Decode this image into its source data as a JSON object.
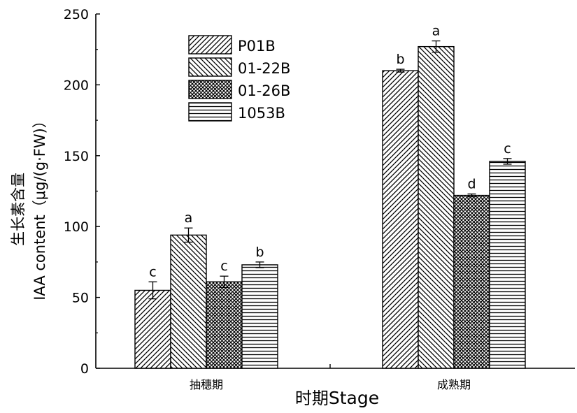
{
  "chart_data": {
    "type": "bar",
    "categories": [
      "抽穗期",
      "成熟期"
    ],
    "series": [
      {
        "name": "P01B",
        "pattern": "hatch-fwd",
        "values": [
          55,
          210
        ],
        "errors": [
          6,
          1
        ],
        "sig": [
          "c",
          "b"
        ]
      },
      {
        "name": "01-22B",
        "pattern": "hatch-back",
        "values": [
          94,
          227
        ],
        "errors": [
          5,
          4
        ],
        "sig": [
          "a",
          "a"
        ]
      },
      {
        "name": "01-26B",
        "pattern": "crosshatch",
        "values": [
          61,
          122
        ],
        "errors": [
          4,
          1
        ],
        "sig": [
          "c",
          "d"
        ]
      },
      {
        "name": "1053B",
        "pattern": "horizontal",
        "values": [
          73,
          146
        ],
        "errors": [
          2,
          2
        ],
        "sig": [
          "b",
          "c"
        ]
      }
    ],
    "y_title_lines": [
      "生长素含量",
      "IAA content（μg/(g·FW)）"
    ],
    "x_title_cn": "时期",
    "x_title_en": "Stage",
    "ylim": [
      0,
      250
    ],
    "yticks": [
      0,
      50,
      100,
      150,
      200,
      250
    ],
    "grid": false,
    "legend_position": "top-center-left"
  }
}
